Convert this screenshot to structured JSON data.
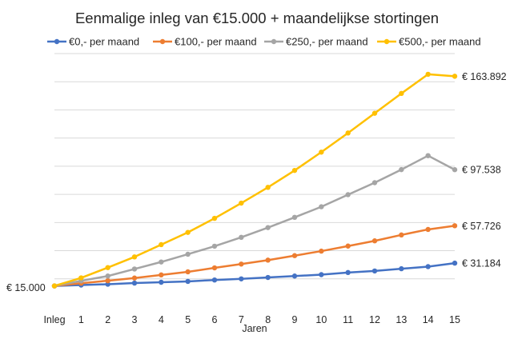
{
  "chart_data": {
    "type": "line",
    "title": "Eenmalige inleg van €15.000 + maandelijkse stortingen",
    "xlabel": "Jaren",
    "ylabel": "",
    "categories": [
      "Inleg",
      "1",
      "2",
      "3",
      "4",
      "5",
      "6",
      "7",
      "8",
      "9",
      "10",
      "11",
      "12",
      "13",
      "14",
      "15"
    ],
    "ylim": [
      0,
      180000
    ],
    "grid": "horizontal",
    "legend_position": "top",
    "start_label": "€ 15.000",
    "series": [
      {
        "name": "€0,- per maand",
        "color": "#4472C4",
        "values": [
          15000,
          15600,
          16200,
          17000,
          17600,
          18200,
          19200,
          20000,
          21000,
          22000,
          23000,
          24500,
          25600,
          27200,
          28700,
          31184
        ],
        "end_label": "€ 31.184"
      },
      {
        "name": "€100,- per maand",
        "color": "#ED7D31",
        "values": [
          15000,
          16900,
          18700,
          20600,
          22800,
          25000,
          27800,
          30500,
          33300,
          36500,
          39700,
          43300,
          47000,
          51200,
          55100,
          57726
        ],
        "end_label": "€ 57.726"
      },
      {
        "name": "€250,- per maand",
        "color": "#A5A5A5",
        "values": [
          15000,
          18600,
          22000,
          27000,
          32000,
          37500,
          43200,
          49500,
          56400,
          63700,
          71200,
          79800,
          88300,
          97600,
          107500,
          97538
        ],
        "end_label": "€ 97.538"
      },
      {
        "name": "€500,- per maand",
        "color": "#FFC000",
        "values": [
          15000,
          20700,
          28000,
          35600,
          44300,
          53000,
          63000,
          73800,
          85000,
          97000,
          110000,
          123600,
          137600,
          151700,
          165300,
          163892
        ],
        "end_label": "€ 163.892"
      }
    ]
  }
}
